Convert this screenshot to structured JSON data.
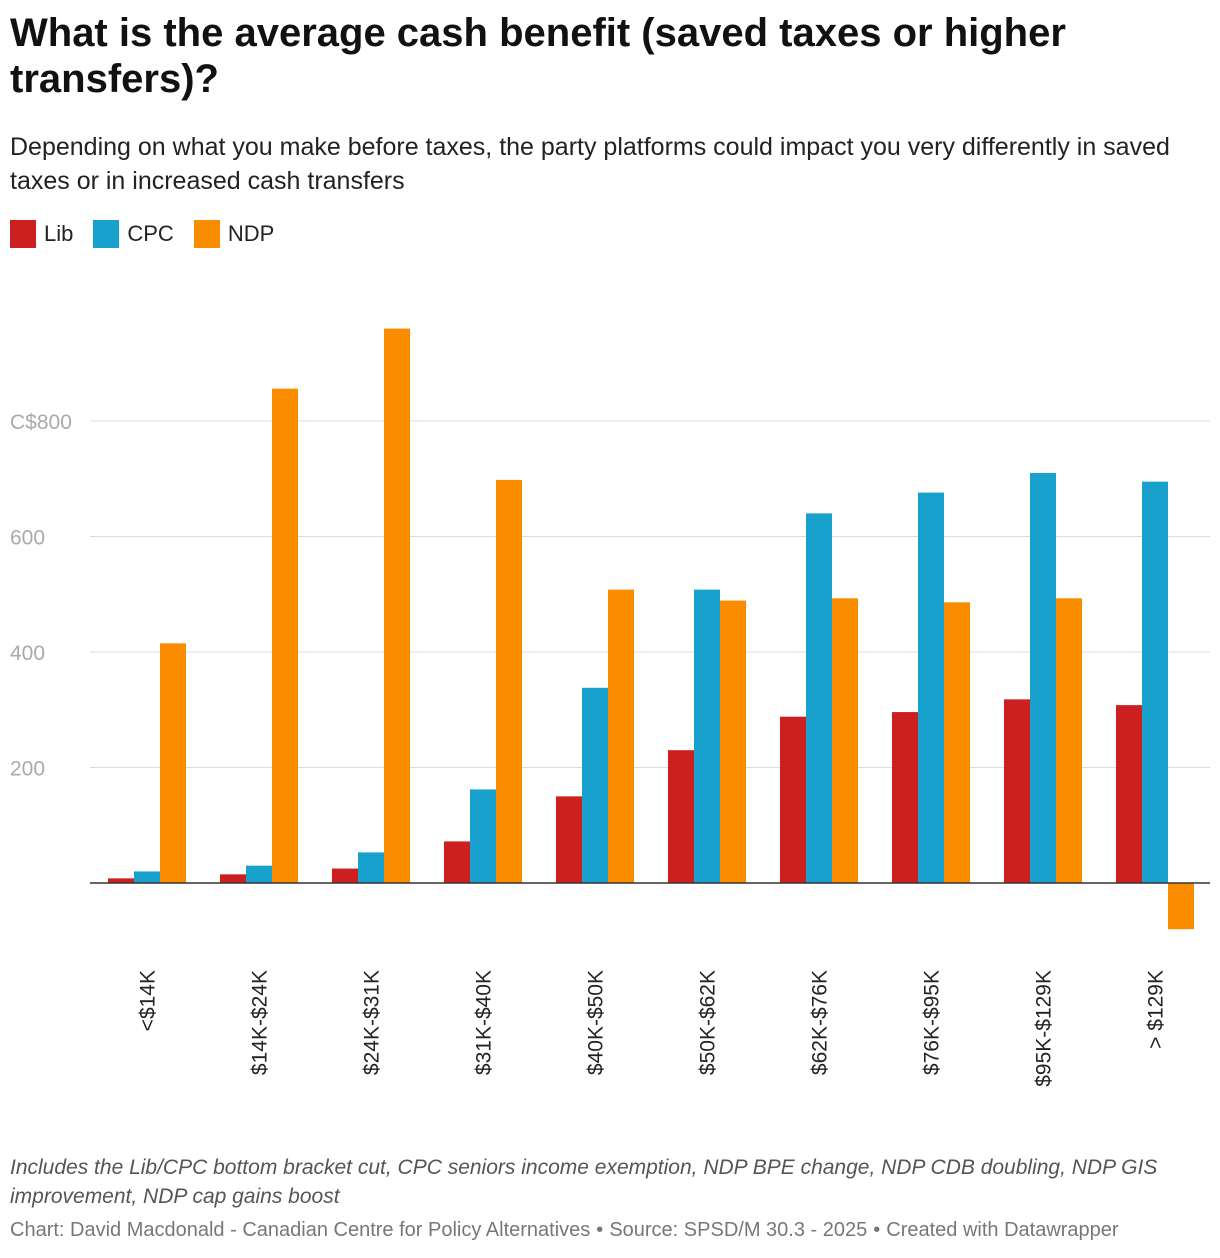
{
  "title": "What is the average cash benefit (saved taxes or higher transfers)?",
  "subtitle": "Depending on what you make before taxes, the party platforms could impact you very differently in saved taxes or in increased cash transfers",
  "notes": "Includes the Lib/CPC bottom bracket cut, CPC seniors income exemption, NDP BPE change, NDP CDB doubling, NDP GIS improvement, NDP cap gains boost",
  "credit": {
    "chart": "Chart: David Macdonald - Canadian Centre for Policy Alternatives",
    "source": "Source: SPSD/M 30.3 - 2025",
    "tool": "Created with Datawrapper",
    "separator": "•"
  },
  "chart_data": {
    "type": "bar",
    "title": "What is the average cash benefit (saved taxes or higher transfers)?",
    "xlabel": "",
    "ylabel": "",
    "ylim": [
      -80,
      960
    ],
    "yticks": [
      200,
      400,
      600,
      800
    ],
    "ytick_labels": [
      "200",
      "400",
      "600",
      "C$800"
    ],
    "grid": true,
    "legend_position": "top-left",
    "categories": [
      "<$14K",
      "$14K-$24K",
      "$24K-$31K",
      "$31K-$40K",
      "$40K-$50K",
      "$50K-$62K",
      "$62K-$76K",
      "$76K-$95K",
      "$95K-$129K",
      "> $129K"
    ],
    "series": [
      {
        "name": "Lib",
        "color": "#cc1f1f",
        "values": [
          8,
          15,
          25,
          72,
          150,
          230,
          288,
          296,
          318,
          308
        ]
      },
      {
        "name": "CPC",
        "color": "#18a1cd",
        "values": [
          20,
          30,
          53,
          162,
          338,
          508,
          640,
          676,
          710,
          695
        ]
      },
      {
        "name": "NDP",
        "color": "#fa8c00",
        "values": [
          415,
          856,
          960,
          698,
          508,
          489,
          493,
          486,
          493,
          -80
        ]
      }
    ]
  }
}
